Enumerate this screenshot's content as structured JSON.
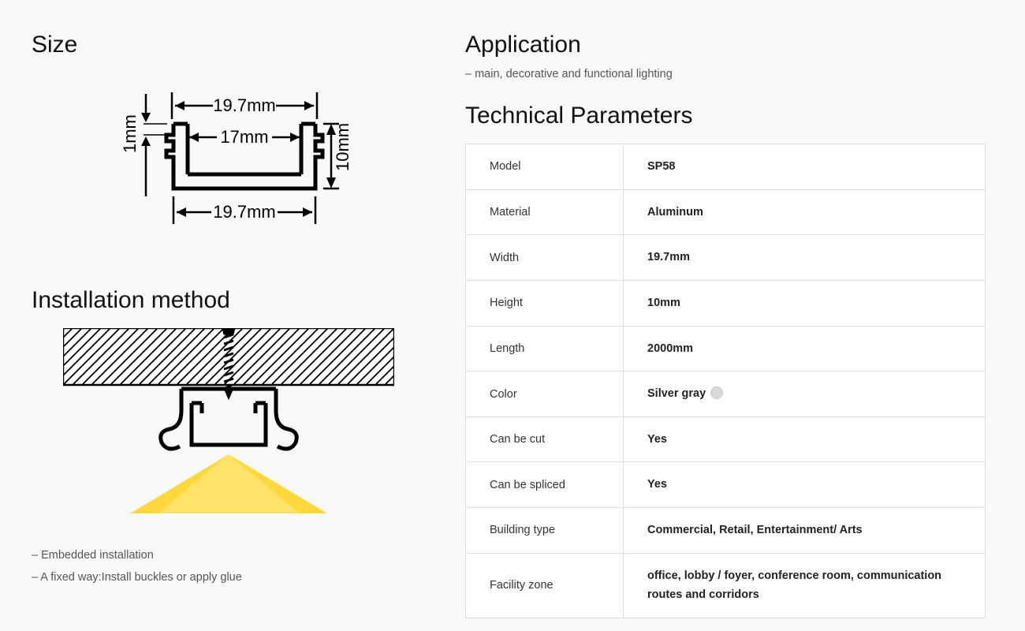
{
  "size": {
    "heading": "Size",
    "width_top": "19.7mm",
    "inner_width": "17mm",
    "width_bottom": "19.7mm",
    "height": "10mm",
    "thickness": "1mm",
    "stroke": "#000000",
    "fontsize": 22
  },
  "install": {
    "heading": "Installation method",
    "notes": [
      "– Embedded installation",
      "– A fixed way:Install buckles or apply glue"
    ],
    "hatch_color": "#000000",
    "profile_color": "#000000",
    "light_color": "#ffd93b"
  },
  "application": {
    "heading": "Application",
    "note": "– main, decorative and functional lighting"
  },
  "tech": {
    "heading": "Technical Parameters",
    "rows": [
      {
        "label": "Model",
        "value": "SP58"
      },
      {
        "label": "Material",
        "value": "Aluminum"
      },
      {
        "label": "Width",
        "value": "19.7mm"
      },
      {
        "label": "Height",
        "value": "10mm"
      },
      {
        "label": "Length",
        "value": "2000mm"
      },
      {
        "label": "Color",
        "value": "Silver gray",
        "swatch": "#d9d9d9"
      },
      {
        "label": "Can be cut",
        "value": "Yes"
      },
      {
        "label": "Can be spliced",
        "value": "Yes"
      },
      {
        "label": "Building type",
        "value": "Commercial, Retail, Entertainment/ Arts"
      },
      {
        "label": "Facility zone",
        "value": "office, lobby / foyer, conference room, communication routes and corridors"
      }
    ]
  },
  "page_bg": "#f7f9fa",
  "table_border": "#dddddd"
}
